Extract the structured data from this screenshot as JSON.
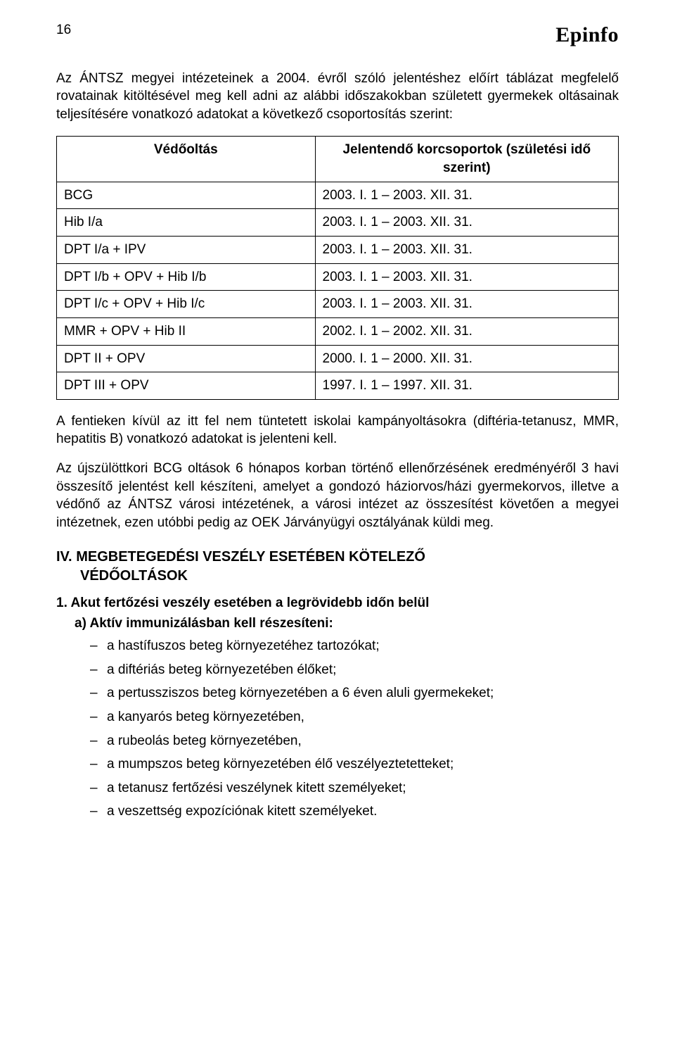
{
  "header": {
    "page_number": "16",
    "brand": "Epinfo"
  },
  "intro_paragraph": "Az ÁNTSZ megyei intézeteinek a 2004. évről szóló jelentéshez előírt táblázat megfelelő rovatainak kitöltésével meg kell adni az alábbi időszakokban született gyermekek oltásainak teljesítésére vonatkozó adatokat a következő csoportosítás szerint:",
  "table": {
    "columns": [
      "Védőoltás",
      "Jelentendő korcsoportok (születési idő szerint)"
    ],
    "rows": [
      [
        "BCG",
        "2003. I. 1 – 2003. XII. 31."
      ],
      [
        "Hib I/a",
        "2003. I. 1 – 2003. XII. 31."
      ],
      [
        "DPT I/a + IPV",
        "2003. I. 1 – 2003. XII. 31."
      ],
      [
        "DPT I/b + OPV + Hib I/b",
        "2003. I. 1 – 2003. XII. 31."
      ],
      [
        "DPT I/c + OPV + Hib I/c",
        "2003. I. 1 – 2003. XII. 31."
      ],
      [
        "MMR + OPV + Hib II",
        "2002. I. 1 – 2002. XII. 31."
      ],
      [
        "DPT II + OPV",
        "2000. I. 1 – 2000. XII. 31."
      ],
      [
        "DPT III + OPV",
        "1997. I. 1 – 1997. XII. 31."
      ]
    ]
  },
  "paragraphs": {
    "p1": "A fentieken kívül az itt fel nem tüntetett iskolai kampányoltásokra (diftéria-tetanusz, MMR, hepatitis B) vonatkozó adatokat is jelenteni kell.",
    "p2": "Az újszülöttkori BCG oltások 6 hónapos korban történő ellenőrzésének eredményéről 3 havi összesítő jelentést kell készíteni, amelyet a gondozó háziorvos/házi gyermekorvos, illetve a védőnő az ÁNTSZ városi intézetének, a városi intézet az összesítést követően a megyei intézetnek, ezen utóbbi pedig az OEK Járványügyi osztályának küldi meg."
  },
  "section4": {
    "number": "IV.",
    "title_line1": "MEGBETEGEDÉSI VESZÉLY ESETÉBEN KÖTELEZŐ",
    "title_line2": "VÉDŐOLTÁSOK",
    "item1_num": "1.",
    "item1_text": "Akut fertőzési veszély esetében a legrövidebb időn belül",
    "item1a_num": "a)",
    "item1a_text": "Aktív immunizálásban kell részesíteni:",
    "bullets": [
      "a hastífuszos beteg környezetéhez tartozókat;",
      "a diftériás beteg környezetében élőket;",
      "a pertussziszos beteg környezetében a 6 éven aluli gyermekeket;",
      "a kanyarós beteg környezetében,",
      "a rubeolás beteg környezetében,",
      "a mumpszos beteg környezetében élő veszélyeztetetteket;",
      "a tetanusz fertőzési veszélynek kitett személyeket;",
      "a veszettség expozíciónak kitett személyeket."
    ]
  }
}
